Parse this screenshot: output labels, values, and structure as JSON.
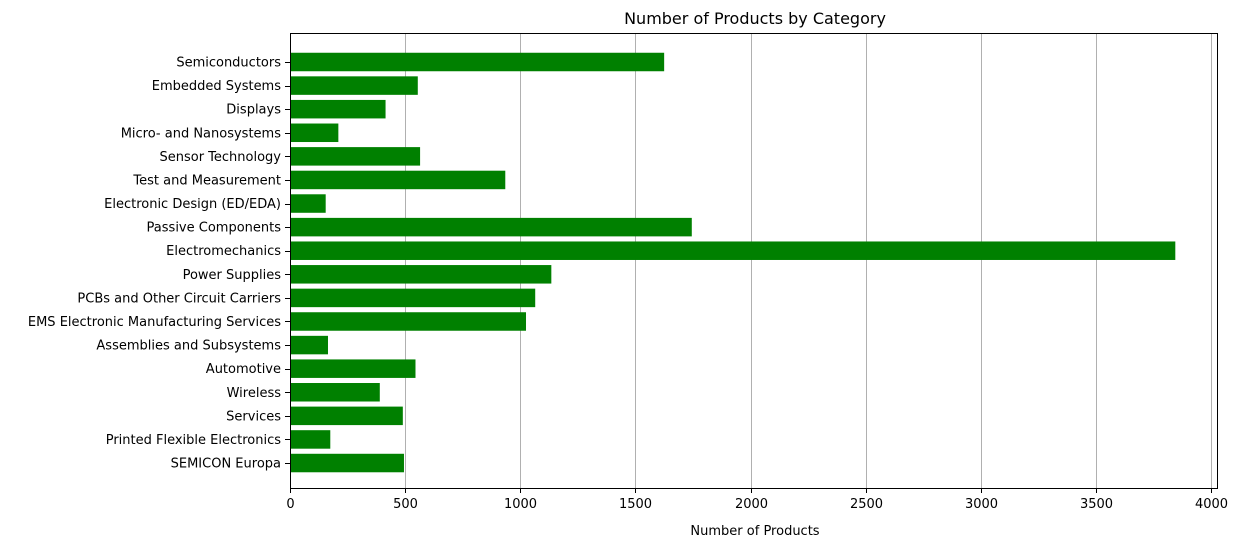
{
  "chart_data": {
    "type": "bar",
    "orientation": "horizontal",
    "title": "Number of Products by Category",
    "xlabel": "Number of Products",
    "ylabel": "",
    "xlim": [
      0,
      4000
    ],
    "xticks": [
      0,
      500,
      1000,
      1500,
      2000,
      2500,
      3000,
      3500,
      4000
    ],
    "grid": "vertical",
    "bar_color": "#008000",
    "grid_color": "#b0b0b0",
    "categories": [
      "Semiconductors",
      "Embedded Systems",
      "Displays",
      "Micro- and Nanosystems",
      "Sensor Technology",
      "Test and Measurement",
      "Electronic Design (ED/EDA)",
      "Passive Components",
      "Electromechanics",
      "Power Supplies",
      "PCBs and Other Circuit Carriers",
      "EMS Electronic Manufacturing Services",
      "Assemblies and Subsystems",
      "Automotive",
      "Wireless",
      "Services",
      "Printed Flexible Electronics",
      "SEMICON Europa"
    ],
    "values": [
      1625,
      555,
      415,
      210,
      565,
      935,
      155,
      1745,
      3845,
      1135,
      1065,
      1025,
      165,
      545,
      390,
      490,
      175,
      495
    ]
  }
}
